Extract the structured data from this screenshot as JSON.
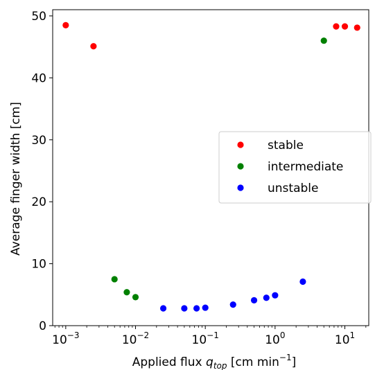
{
  "chart_data": {
    "type": "scatter",
    "xscale": "log",
    "xlim": [
      0.00065,
      22
    ],
    "ylim": [
      0,
      51
    ],
    "xlabel": "Applied flux q_top [cm min⁻¹]",
    "xlabel_parts": {
      "pre": "Applied flux ",
      "var": "q",
      "sub": "top",
      "post": " [cm min",
      "sup": "−1",
      "end": "]"
    },
    "ylabel": "Average finger width [cm]",
    "yticks": [
      0,
      10,
      20,
      30,
      40,
      50
    ],
    "ytick_labels": [
      "0",
      "10",
      "20",
      "30",
      "40",
      "50"
    ],
    "xticks": [
      {
        "value": 0.001,
        "base": "10",
        "exp": "−3"
      },
      {
        "value": 0.01,
        "base": "10",
        "exp": "−2"
      },
      {
        "value": 0.1,
        "base": "10",
        "exp": "−1"
      },
      {
        "value": 1,
        "base": "10",
        "exp": "0"
      },
      {
        "value": 10,
        "base": "10",
        "exp": "1"
      }
    ],
    "legend_position": "center-right",
    "series": [
      {
        "name": "stable",
        "color": "#ff0000",
        "points": [
          [
            0.001,
            48.5
          ],
          [
            0.0025,
            45.1
          ],
          [
            7.5,
            48.3
          ],
          [
            10,
            48.3
          ],
          [
            15,
            48.1
          ]
        ]
      },
      {
        "name": "intermediate",
        "color": "#008000",
        "points": [
          [
            0.005,
            7.5
          ],
          [
            0.0075,
            5.4
          ],
          [
            0.01,
            4.6
          ],
          [
            5,
            46.0
          ]
        ]
      },
      {
        "name": "unstable",
        "color": "#0000ff",
        "points": [
          [
            0.025,
            2.8
          ],
          [
            0.05,
            2.8
          ],
          [
            0.075,
            2.8
          ],
          [
            0.1,
            2.9
          ],
          [
            0.25,
            3.4
          ],
          [
            0.5,
            4.1
          ],
          [
            0.75,
            4.5
          ],
          [
            1,
            4.9
          ],
          [
            2.5,
            7.1
          ]
        ]
      }
    ]
  }
}
